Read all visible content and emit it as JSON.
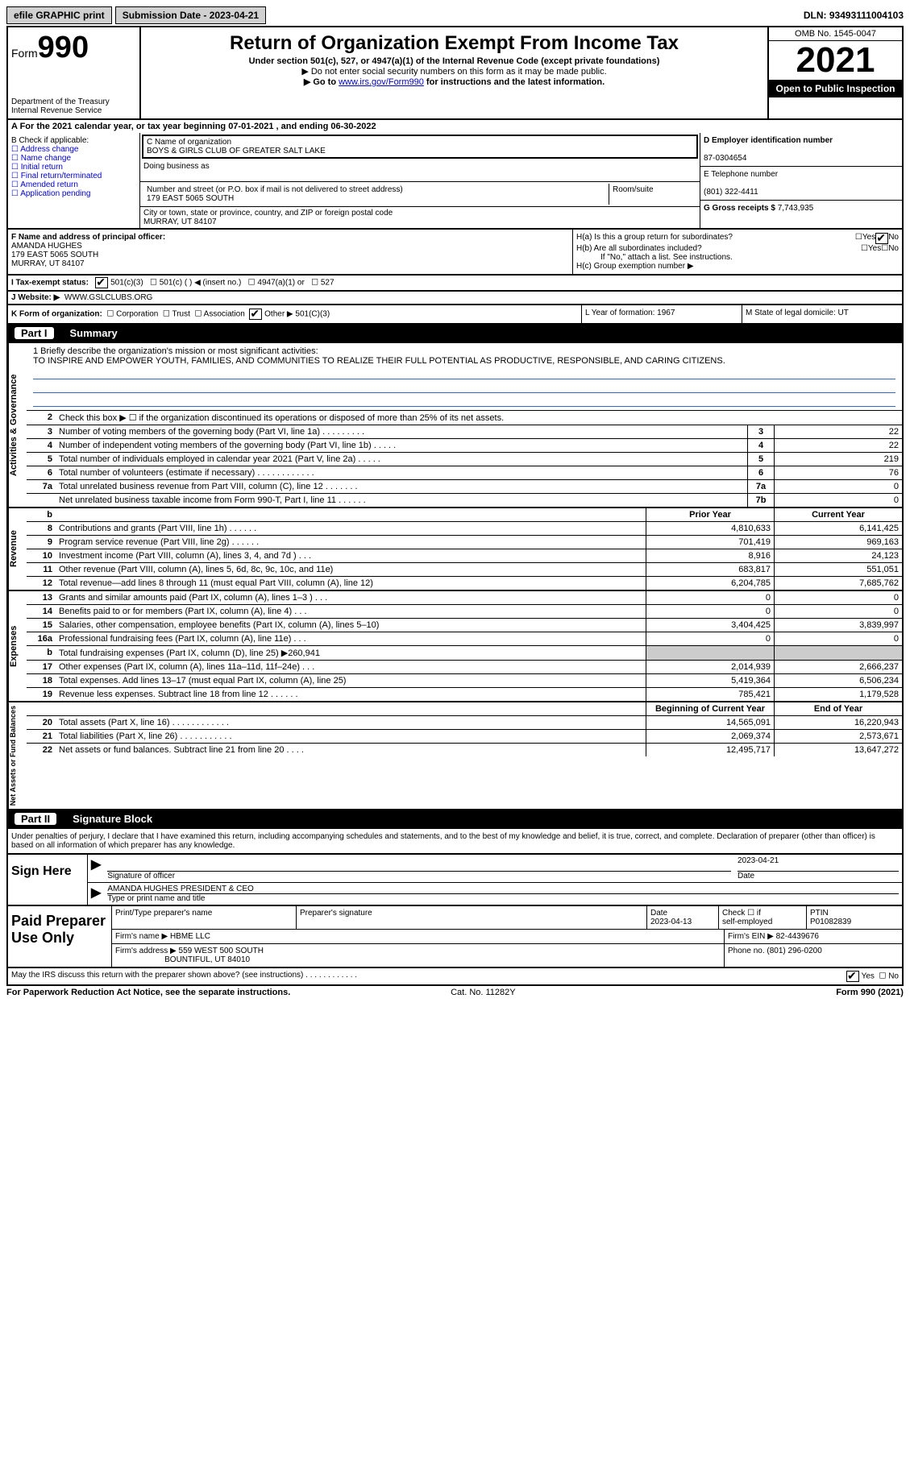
{
  "topbar": {
    "efile": "efile GRAPHIC print",
    "submission": "Submission Date - 2023-04-21",
    "dln": "DLN: 93493111004103"
  },
  "header": {
    "form_label": "Form",
    "form_num": "990",
    "dept": "Department of the Treasury Internal Revenue Service",
    "title": "Return of Organization Exempt From Income Tax",
    "sub": "Under section 501(c), 527, or 4947(a)(1) of the Internal Revenue Code (except private foundations)",
    "note1": "▶ Do not enter social security numbers on this form as it may be made public.",
    "note2_pre": "▶ Go to ",
    "note2_link": "www.irs.gov/Form990",
    "note2_post": " for instructions and the latest information.",
    "omb": "OMB No. 1545-0047",
    "year": "2021",
    "open": "Open to Public Inspection"
  },
  "rowA": "A For the 2021 calendar year, or tax year beginning 07-01-2021   , and ending 06-30-2022",
  "B": {
    "label": "B Check if applicable:",
    "opts": [
      "Address change",
      "Name change",
      "Initial return",
      "Final return/terminated",
      "Amended return",
      "Application pending"
    ]
  },
  "C": {
    "name_label": "C Name of organization",
    "name": "BOYS & GIRLS CLUB OF GREATER SALT LAKE",
    "dba_label": "Doing business as",
    "addr_label": "Number and street (or P.O. box if mail is not delivered to street address)",
    "room_label": "Room/suite",
    "addr": "179 EAST 5065 SOUTH",
    "city_label": "City or town, state or province, country, and ZIP or foreign postal code",
    "city": "MURRAY, UT  84107"
  },
  "D": {
    "ein_label": "D Employer identification number",
    "ein": "87-0304654",
    "tel_label": "E Telephone number",
    "tel": "(801) 322-4411",
    "gross_label": "G Gross receipts $",
    "gross": "7,743,935"
  },
  "F": {
    "label": "F  Name and address of principal officer:",
    "name": "AMANDA HUGHES",
    "addr1": "179 EAST 5065 SOUTH",
    "addr2": "MURRAY, UT  84107"
  },
  "H": {
    "a": "H(a)  Is this a group return for subordinates?",
    "b": "H(b)  Are all subordinates included?",
    "b_note": "If \"No,\" attach a list. See instructions.",
    "c": "H(c)  Group exemption number ▶",
    "yes": "Yes",
    "no": "No"
  },
  "I": {
    "label": "I   Tax-exempt status:",
    "o1": "501(c)(3)",
    "o2": "501(c) (  ) ◀ (insert no.)",
    "o3": "4947(a)(1) or",
    "o4": "527"
  },
  "J": {
    "label": "J   Website: ▶",
    "val": "WWW.GSLCLUBS.ORG"
  },
  "K": {
    "label": "K Form of organization:",
    "o1": "Corporation",
    "o2": "Trust",
    "o3": "Association",
    "o4": "Other ▶",
    "o4v": "501(C)(3)",
    "L": "L Year of formation: 1967",
    "M": "M State of legal domicile: UT"
  },
  "part1": {
    "pn": "Part I",
    "title": "Summary"
  },
  "mission": {
    "label": "1   Briefly describe the organization's mission or most significant activities:",
    "text": "TO INSPIRE AND EMPOWER YOUTH, FAMILIES, AND COMMUNITIES TO REALIZE THEIR FULL POTENTIAL AS PRODUCTIVE, RESPONSIBLE, AND CARING CITIZENS."
  },
  "sections": {
    "gov": "Activities & Governance",
    "rev": "Revenue",
    "exp": "Expenses",
    "net": "Net Assets or Fund Balances"
  },
  "govRows": [
    {
      "n": "2",
      "d": "Check this box ▶ ☐  if the organization discontinued its operations or disposed of more than 25% of its net assets."
    },
    {
      "n": "3",
      "d": "Number of voting members of the governing body (Part VI, line 1a)   .    .    .    .    .    .    .    .    .",
      "b": "3",
      "v": "22"
    },
    {
      "n": "4",
      "d": "Number of independent voting members of the governing body (Part VI, line 1b)  .    .    .    .    .",
      "b": "4",
      "v": "22"
    },
    {
      "n": "5",
      "d": "Total number of individuals employed in calendar year 2021 (Part V, line 2a)    .    .    .    .    .",
      "b": "5",
      "v": "219"
    },
    {
      "n": "6",
      "d": "Total number of volunteers (estimate if necessary)    .    .    .    .    .    .    .    .    .    .    .    .",
      "b": "6",
      "v": "76"
    },
    {
      "n": "7a",
      "d": "Total unrelated business revenue from Part VIII, column (C), line 12    .    .    .    .    .    .    .",
      "b": "7a",
      "v": "0"
    },
    {
      "n": "",
      "d": "Net unrelated business taxable income from Form 990-T, Part I, line 11   .    .    .    .    .    .",
      "b": "7b",
      "v": "0"
    }
  ],
  "yearHdr": {
    "prior": "Prior Year",
    "curr": "Current Year"
  },
  "revRows": [
    {
      "n": "8",
      "d": "Contributions and grants (Part VIII, line 1h)   .    .    .    .    .    .",
      "p": "4,810,633",
      "c": "6,141,425"
    },
    {
      "n": "9",
      "d": "Program service revenue (Part VIII, line 2g)   .    .    .    .    .    .",
      "p": "701,419",
      "c": "969,163"
    },
    {
      "n": "10",
      "d": "Investment income (Part VIII, column (A), lines 3, 4, and 7d )    .    .    .",
      "p": "8,916",
      "c": "24,123"
    },
    {
      "n": "11",
      "d": "Other revenue (Part VIII, column (A), lines 5, 6d, 8c, 9c, 10c, and 11e)",
      "p": "683,817",
      "c": "551,051"
    },
    {
      "n": "12",
      "d": "Total revenue—add lines 8 through 11 (must equal Part VIII, column (A), line 12)",
      "p": "6,204,785",
      "c": "7,685,762"
    }
  ],
  "expRows": [
    {
      "n": "13",
      "d": "Grants and similar amounts paid (Part IX, column (A), lines 1–3 )   .    .    .",
      "p": "0",
      "c": "0"
    },
    {
      "n": "14",
      "d": "Benefits paid to or for members (Part IX, column (A), line 4)   .    .    .",
      "p": "0",
      "c": "0"
    },
    {
      "n": "15",
      "d": "Salaries, other compensation, employee benefits (Part IX, column (A), lines 5–10)",
      "p": "3,404,425",
      "c": "3,839,997"
    },
    {
      "n": "16a",
      "d": "Professional fundraising fees (Part IX, column (A), line 11e)   .    .    .",
      "p": "0",
      "c": "0"
    },
    {
      "n": "b",
      "d": "Total fundraising expenses (Part IX, column (D), line 25) ▶260,941",
      "shade": true
    },
    {
      "n": "17",
      "d": "Other expenses (Part IX, column (A), lines 11a–11d, 11f–24e)   .    .    .",
      "p": "2,014,939",
      "c": "2,666,237"
    },
    {
      "n": "18",
      "d": "Total expenses. Add lines 13–17 (must equal Part IX, column (A), line 25)",
      "p": "5,419,364",
      "c": "6,506,234"
    },
    {
      "n": "19",
      "d": "Revenue less expenses. Subtract line 18 from line 12  .    .    .    .    .    .",
      "p": "785,421",
      "c": "1,179,528"
    }
  ],
  "netHdr": {
    "prior": "Beginning of Current Year",
    "curr": "End of Year"
  },
  "netRows": [
    {
      "n": "20",
      "d": "Total assets (Part X, line 16)  .    .    .    .    .    .    .    .    .    .    .    .",
      "p": "14,565,091",
      "c": "16,220,943"
    },
    {
      "n": "21",
      "d": "Total liabilities (Part X, line 26)  .    .    .    .    .    .    .    .    .    .    .",
      "p": "2,069,374",
      "c": "2,573,671"
    },
    {
      "n": "22",
      "d": "Net assets or fund balances. Subtract line 21 from line 20  .    .    .    .",
      "p": "12,495,717",
      "c": "13,647,272"
    }
  ],
  "part2": {
    "pn": "Part II",
    "title": "Signature Block"
  },
  "decl": "Under penalties of perjury, I declare that I have examined this return, including accompanying schedules and statements, and to the best of my knowledge and belief, it is true, correct, and complete. Declaration of preparer (other than officer) is based on all information of which preparer has any knowledge.",
  "sign": {
    "here": "Sign Here",
    "sig_label": "Signature of officer",
    "date": "2023-04-21",
    "date_label": "Date",
    "name": "AMANDA HUGHES  PRESIDENT & CEO",
    "name_label": "Type or print name and title"
  },
  "paid": {
    "label": "Paid Preparer Use Only",
    "h1": "Print/Type preparer's name",
    "h2": "Preparer's signature",
    "h3": "Date",
    "h3v": "2023-04-13",
    "h4a": "Check ☐ if",
    "h4b": "self-employed",
    "h5": "PTIN",
    "h5v": "P01082839",
    "firm_label": "Firm's name    ▶",
    "firm": "HBME LLC",
    "ein_label": "Firm's EIN ▶",
    "ein": "82-4439676",
    "addr_label": "Firm's address ▶",
    "addr1": "559 WEST 500 SOUTH",
    "addr2": "BOUNTIFUL, UT  84010",
    "phone_label": "Phone no.",
    "phone": "(801) 296-0200"
  },
  "irs_discuss": "May the IRS discuss this return with the preparer shown above? (see instructions)   .    .    .    .    .    .    .    .    .    .    .    .",
  "bottom": {
    "left": "For Paperwork Reduction Act Notice, see the separate instructions.",
    "mid": "Cat. No. 11282Y",
    "right": "Form 990 (2021)"
  }
}
